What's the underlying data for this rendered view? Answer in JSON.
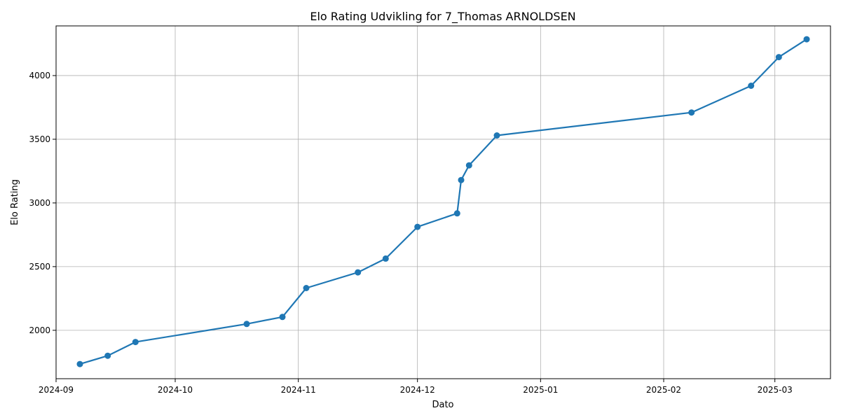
{
  "chart_data": {
    "type": "line",
    "title": "Elo Rating Udvikling for 7_Thomas ARNOLDSEN",
    "xlabel": "Dato",
    "ylabel": "Elo Rating",
    "grid": true,
    "x_axis_type": "date",
    "xlim": [
      "2024-09-01",
      "2025-03-15"
    ],
    "ylim": [
      1620,
      4390
    ],
    "x_ticks": [
      "2024-09-01",
      "2024-10-01",
      "2024-11-01",
      "2024-12-01",
      "2025-01-01",
      "2025-02-01",
      "2025-03-01"
    ],
    "x_tick_labels": [
      "2024-09",
      "2024-10",
      "2024-11",
      "2024-12",
      "2025-01",
      "2025-02",
      "2025-03"
    ],
    "y_ticks": [
      2000,
      2500,
      3000,
      3500,
      4000
    ],
    "y_tick_labels": [
      "2000",
      "2500",
      "3000",
      "3500",
      "4000"
    ],
    "series": [
      {
        "name": "",
        "color": "#1f77b4",
        "x": [
          "2024-09-07",
          "2024-09-14",
          "2024-09-21",
          "2024-10-19",
          "2024-10-28",
          "2024-11-03",
          "2024-11-16",
          "2024-11-23",
          "2024-12-01",
          "2024-12-11",
          "2024-12-12",
          "2024-12-14",
          "2024-12-21",
          "2025-02-08",
          "2025-02-23",
          "2025-03-02",
          "2025-03-09"
        ],
        "y": [
          1735,
          1800,
          1908,
          2050,
          2105,
          2332,
          2455,
          2563,
          2812,
          2918,
          3180,
          3295,
          3530,
          3710,
          3920,
          4145,
          4285
        ]
      }
    ]
  }
}
